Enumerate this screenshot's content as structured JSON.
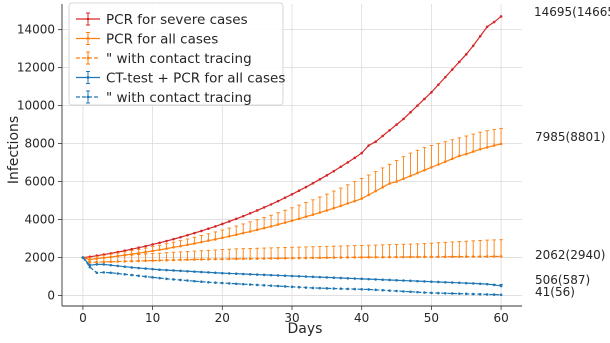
{
  "chart_data": {
    "type": "line",
    "xlabel": "Days",
    "ylabel": "Infections",
    "xlim": [
      0,
      60
    ],
    "ylim": [
      0,
      14700
    ],
    "xticks": [
      0,
      10,
      20,
      30,
      40,
      50,
      60
    ],
    "yticks": [
      0,
      2000,
      4000,
      6000,
      8000,
      10000,
      12000,
      14000
    ],
    "grid": true,
    "legend_position": "top-left",
    "x": [
      0,
      1,
      2,
      3,
      4,
      5,
      6,
      7,
      8,
      9,
      10,
      11,
      12,
      13,
      14,
      15,
      16,
      17,
      18,
      19,
      20,
      21,
      22,
      23,
      24,
      25,
      26,
      27,
      28,
      29,
      30,
      31,
      32,
      33,
      34,
      35,
      36,
      37,
      38,
      39,
      40,
      41,
      42,
      43,
      44,
      45,
      46,
      47,
      48,
      49,
      50,
      51,
      52,
      53,
      54,
      55,
      56,
      57,
      58,
      59,
      60
    ],
    "series": [
      {
        "name": "PCR for severe cases",
        "color": "#d62728",
        "dash": "solid",
        "values": [
          2000,
          2040,
          2100,
          2160,
          2220,
          2290,
          2360,
          2440,
          2520,
          2600,
          2690,
          2780,
          2870,
          2970,
          3070,
          3180,
          3290,
          3400,
          3520,
          3640,
          3770,
          3900,
          4040,
          4180,
          4330,
          4480,
          4640,
          4800,
          4970,
          5150,
          5330,
          5520,
          5710,
          5910,
          6120,
          6330,
          6550,
          6780,
          7010,
          7250,
          7500,
          7900,
          8100,
          8400,
          8700,
          9000,
          9300,
          9650,
          10000,
          10350,
          10700,
          11100,
          11500,
          11900,
          12300,
          12700,
          13150,
          13650,
          14150,
          14400,
          14695
        ],
        "upper": [
          2000,
          2040,
          2100,
          2160,
          2220,
          2290,
          2360,
          2440,
          2520,
          2600,
          2690,
          2780,
          2870,
          2970,
          3070,
          3180,
          3290,
          3400,
          3520,
          3640,
          3770,
          3900,
          4040,
          4180,
          4330,
          4480,
          4640,
          4800,
          4970,
          5150,
          5330,
          5520,
          5710,
          5910,
          6120,
          6330,
          6550,
          6780,
          7010,
          7250,
          7500,
          7900,
          8100,
          8400,
          8700,
          9000,
          9300,
          9650,
          10000,
          10350,
          10700,
          11100,
          11500,
          11900,
          12300,
          12700,
          13150,
          13650,
          14150,
          14400,
          14665
        ],
        "end_label": "14695(14665)"
      },
      {
        "name": "PCR for all cases",
        "color": "#ff7f0e",
        "dash": "solid",
        "values": [
          2000,
          1900,
          1950,
          1990,
          2030,
          2080,
          2130,
          2180,
          2230,
          2290,
          2350,
          2410,
          2470,
          2540,
          2600,
          2670,
          2740,
          2810,
          2890,
          2960,
          3040,
          3120,
          3200,
          3290,
          3370,
          3460,
          3550,
          3640,
          3740,
          3840,
          3940,
          4040,
          4150,
          4260,
          4370,
          4480,
          4600,
          4720,
          4850,
          4970,
          5100,
          5300,
          5500,
          5700,
          5900,
          6000,
          6150,
          6300,
          6450,
          6600,
          6750,
          6900,
          7050,
          7200,
          7350,
          7450,
          7580,
          7700,
          7800,
          7900,
          7985
        ],
        "upper": [
          2000,
          2000,
          2060,
          2120,
          2180,
          2240,
          2300,
          2370,
          2430,
          2500,
          2580,
          2650,
          2730,
          2810,
          2890,
          2980,
          3070,
          3160,
          3250,
          3350,
          3450,
          3550,
          3660,
          3770,
          3880,
          3990,
          4110,
          4230,
          4360,
          4490,
          4620,
          4760,
          4900,
          5040,
          5190,
          5340,
          5500,
          5660,
          5830,
          6000,
          6170,
          6350,
          6530,
          6720,
          6910,
          7110,
          7310,
          7500,
          7650,
          7800,
          7900,
          8000,
          8100,
          8200,
          8300,
          8400,
          8500,
          8600,
          8680,
          8750,
          8801
        ],
        "end_label": "7985(8801)"
      },
      {
        "name": "\" with contact tracing",
        "color": "#ff7f0e",
        "dash": "dashed",
        "values": [
          2000,
          1750,
          1760,
          1770,
          1780,
          1790,
          1800,
          1810,
          1820,
          1830,
          1840,
          1850,
          1860,
          1870,
          1880,
          1890,
          1900,
          1905,
          1910,
          1915,
          1920,
          1925,
          1930,
          1935,
          1940,
          1945,
          1950,
          1955,
          1960,
          1965,
          1970,
          1975,
          1980,
          1985,
          1990,
          1995,
          2000,
          2005,
          2010,
          2012,
          2015,
          2018,
          2020,
          2022,
          2025,
          2028,
          2030,
          2033,
          2035,
          2038,
          2040,
          2042,
          2045,
          2047,
          2050,
          2052,
          2054,
          2056,
          2058,
          2060,
          2062
        ],
        "upper": [
          2000,
          1900,
          1950,
          1990,
          2030,
          2070,
          2100,
          2130,
          2160,
          2190,
          2210,
          2230,
          2260,
          2280,
          2300,
          2320,
          2340,
          2360,
          2380,
          2400,
          2420,
          2440,
          2460,
          2470,
          2480,
          2490,
          2500,
          2510,
          2520,
          2530,
          2540,
          2550,
          2560,
          2570,
          2580,
          2590,
          2600,
          2610,
          2620,
          2630,
          2640,
          2650,
          2660,
          2670,
          2680,
          2690,
          2700,
          2710,
          2720,
          2740,
          2760,
          2780,
          2800,
          2820,
          2840,
          2860,
          2880,
          2900,
          2920,
          2930,
          2940
        ],
        "end_label": "2062(2940)"
      },
      {
        "name": "CT-test + PCR for all cases",
        "color": "#1f77b4",
        "dash": "solid",
        "values": [
          2000,
          1600,
          1640,
          1640,
          1600,
          1560,
          1520,
          1480,
          1450,
          1420,
          1390,
          1360,
          1340,
          1320,
          1300,
          1280,
          1260,
          1240,
          1220,
          1200,
          1180,
          1165,
          1150,
          1135,
          1120,
          1105,
          1090,
          1075,
          1060,
          1045,
          1030,
          1015,
          1000,
          985,
          970,
          955,
          940,
          925,
          910,
          895,
          880,
          865,
          850,
          835,
          820,
          805,
          790,
          775,
          760,
          745,
          730,
          715,
          700,
          685,
          670,
          655,
          640,
          620,
          600,
          560,
          506
        ],
        "upper": [
          2000,
          1600,
          1640,
          1640,
          1600,
          1560,
          1520,
          1480,
          1450,
          1420,
          1390,
          1360,
          1340,
          1320,
          1300,
          1280,
          1260,
          1240,
          1220,
          1200,
          1180,
          1165,
          1150,
          1135,
          1120,
          1105,
          1090,
          1075,
          1060,
          1045,
          1030,
          1015,
          1000,
          985,
          970,
          955,
          940,
          925,
          910,
          895,
          880,
          865,
          850,
          835,
          820,
          805,
          790,
          775,
          760,
          745,
          730,
          715,
          700,
          685,
          670,
          655,
          640,
          620,
          600,
          590,
          587
        ],
        "end_label": "506(587)"
      },
      {
        "name": "\" with contact tracing",
        "color": "#1f77b4",
        "dash": "dashed",
        "values": [
          2000,
          1500,
          1200,
          1220,
          1200,
          1160,
          1120,
          1080,
          1040,
          1000,
          960,
          920,
          880,
          850,
          820,
          790,
          760,
          730,
          700,
          680,
          660,
          640,
          620,
          600,
          580,
          560,
          540,
          520,
          500,
          480,
          460,
          440,
          420,
          400,
          390,
          380,
          370,
          360,
          350,
          340,
          330,
          320,
          300,
          280,
          260,
          240,
          220,
          200,
          180,
          160,
          140,
          130,
          120,
          110,
          100,
          90,
          80,
          70,
          60,
          50,
          41
        ],
        "upper": [
          2000,
          1500,
          1200,
          1220,
          1200,
          1160,
          1120,
          1080,
          1040,
          1000,
          960,
          920,
          880,
          850,
          820,
          790,
          760,
          730,
          700,
          680,
          660,
          640,
          620,
          600,
          580,
          560,
          540,
          520,
          500,
          480,
          460,
          440,
          420,
          400,
          390,
          380,
          370,
          360,
          350,
          340,
          330,
          320,
          300,
          280,
          260,
          240,
          220,
          200,
          180,
          160,
          140,
          130,
          120,
          110,
          100,
          90,
          80,
          70,
          65,
          60,
          56
        ],
        "end_label": "41(56)"
      }
    ]
  }
}
